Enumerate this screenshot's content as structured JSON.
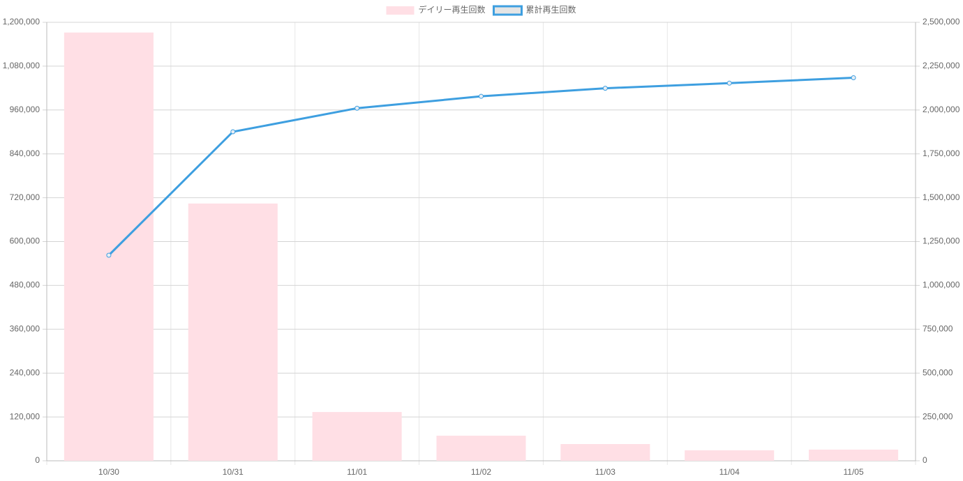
{
  "chart_data": {
    "type": "bar-line",
    "categories": [
      "10/30",
      "10/31",
      "11/01",
      "11/02",
      "11/03",
      "11/04",
      "11/05"
    ],
    "series": [
      {
        "name": "デイリー再生回数",
        "type": "bar",
        "color": "#ffdfe5",
        "values": [
          1172000,
          704000,
          133500,
          68700,
          45800,
          28600,
          30500
        ]
      },
      {
        "name": "累計再生回数",
        "type": "line",
        "axis": "y2",
        "color": "#3e9fe0",
        "values": [
          1172000,
          1876000,
          2010000,
          2078000,
          2124000,
          2153000,
          2184000
        ]
      }
    ],
    "ylim": [
      0,
      1200000
    ],
    "yticks": [
      0,
      {
        "value": 120000,
        "label": "120,000"
      },
      {
        "value": 240000,
        "label": "240,000"
      },
      {
        "value": 360000,
        "label": "360,000"
      },
      {
        "value": 480000,
        "label": "480,000"
      },
      {
        "value": 600000,
        "label": "600,000"
      },
      {
        "value": 720000,
        "label": "720,000"
      },
      {
        "value": 840000,
        "label": "840,000"
      },
      {
        "value": 960000,
        "label": "960,000"
      },
      {
        "value": 1080000,
        "label": "1,080,000"
      },
      {
        "value": 1200000,
        "label": "1,200,000"
      }
    ],
    "y2lim": [
      0,
      2500000
    ],
    "y2ticks": [
      0,
      {
        "value": 250000,
        "label": "250,000"
      },
      {
        "value": 500000,
        "label": "500,000"
      },
      {
        "value": 750000,
        "label": "750,000"
      },
      {
        "value": 1000000,
        "label": "1,000,000"
      },
      {
        "value": 1250000,
        "label": "1,250,000"
      },
      {
        "value": 1500000,
        "label": "1,500,000"
      },
      {
        "value": 1750000,
        "label": "1,750,000"
      },
      {
        "value": 2000000,
        "label": "2,000,000"
      },
      {
        "value": 2250000,
        "label": "2,250,000"
      },
      {
        "value": 2500000,
        "label": "2,500,000"
      }
    ],
    "grid": true,
    "legend": "top"
  }
}
